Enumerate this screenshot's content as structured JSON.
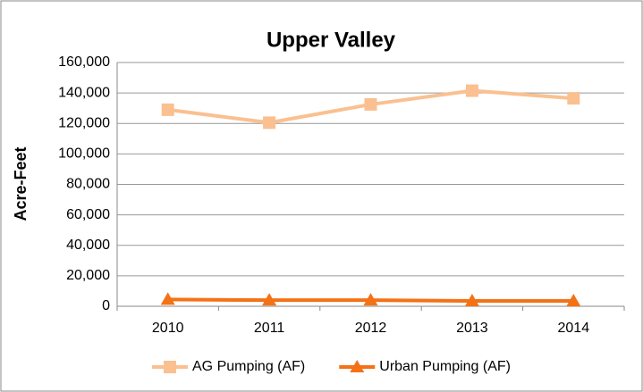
{
  "chart_data": {
    "type": "line",
    "title": "Upper Valley",
    "y_label": "Acre-Feet",
    "categories": [
      "2010",
      "2011",
      "2012",
      "2013",
      "2014"
    ],
    "series": [
      {
        "name": "AG Pumping (AF)",
        "color": "#fac090",
        "marker": "square",
        "values": [
          129000,
          120500,
          132500,
          141500,
          136500
        ]
      },
      {
        "name": "Urban Pumping (AF)",
        "color": "#f47216",
        "marker": "triangle",
        "values": [
          4500,
          4000,
          4000,
          3500,
          3500
        ]
      }
    ],
    "ylim": [
      0,
      160000
    ],
    "yticks": [
      0,
      {
        "value": 20000,
        "label": "20,000"
      },
      {
        "value": 40000,
        "label": "40,000"
      },
      {
        "value": 60000,
        "label": "60,000"
      },
      {
        "value": 80000,
        "label": "80,000"
      },
      {
        "value": 100000,
        "label": "100,000"
      },
      {
        "value": 120000,
        "label": "120,000"
      },
      {
        "value": 140000,
        "label": "140,000"
      },
      {
        "value": 160000,
        "label": "160,000"
      }
    ],
    "grid": true,
    "legend": "bottom"
  }
}
